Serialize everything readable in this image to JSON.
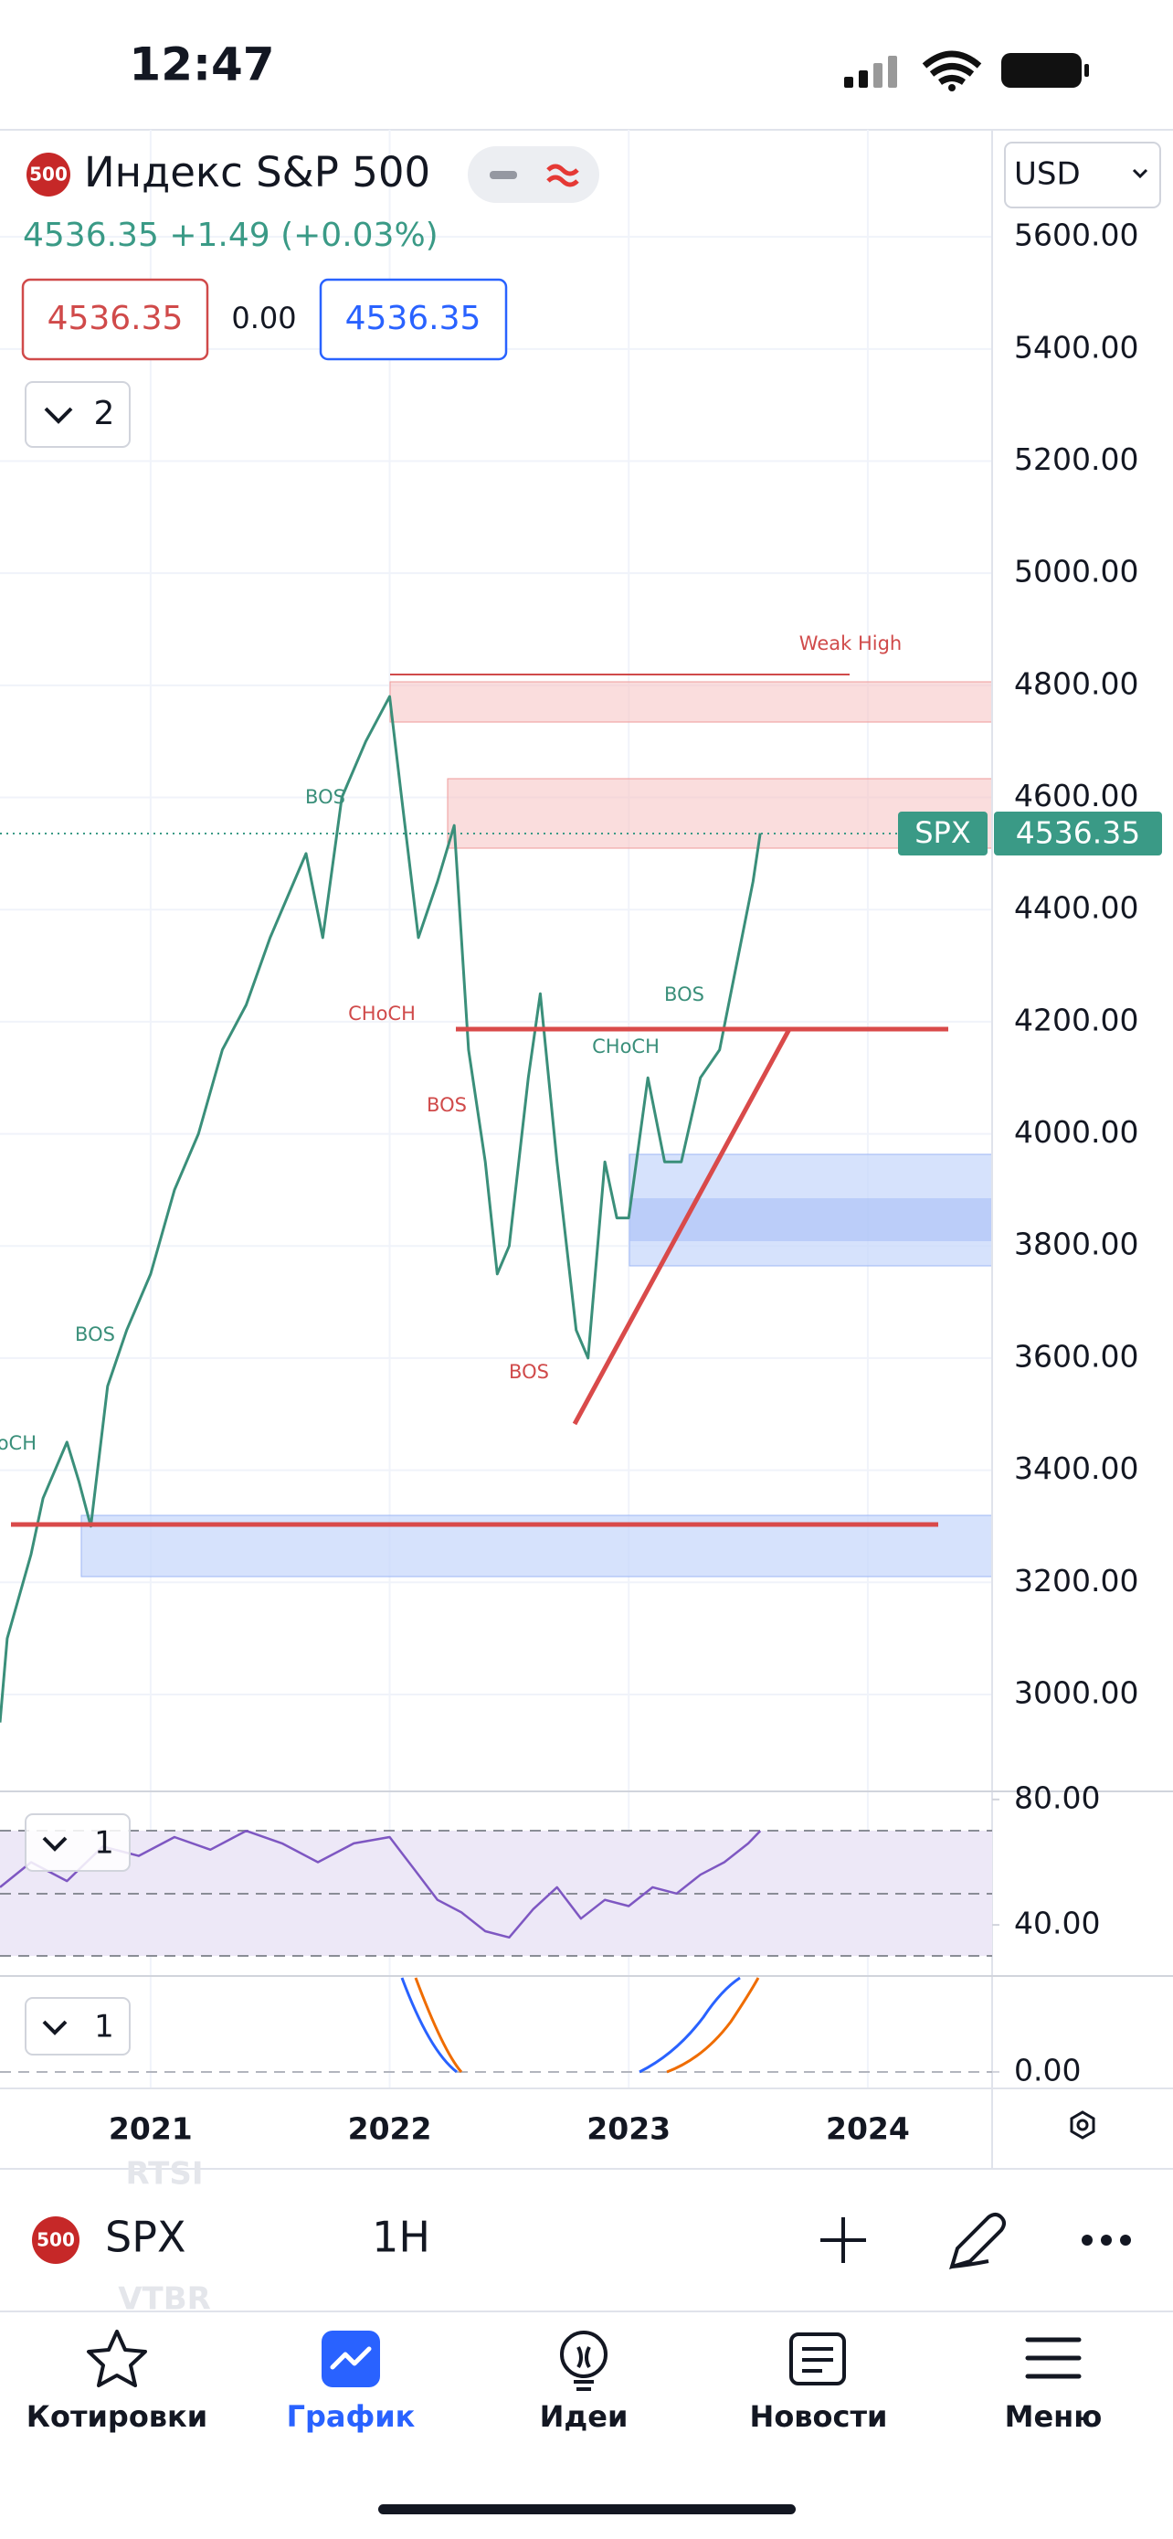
{
  "status": {
    "time": "12:47"
  },
  "header": {
    "logo": "500",
    "title": "Индекс S&P 500",
    "currency": "USD",
    "quote": "4536.35 +1.49 (+0.03%)",
    "bid": "4536.35",
    "spread": "0.00",
    "ask": "4536.35",
    "indicators_toggle": "2"
  },
  "price_badge": {
    "symbol": "SPX",
    "price": "4536.35"
  },
  "annotations": [
    "Weak High",
    "BOS",
    "CHoCH",
    "BOS",
    "BOS",
    "BOS",
    "CHoCH",
    "BOS",
    "CHoCH"
  ],
  "chart_data": [
    {
      "type": "line",
      "color": "#3a8f7a",
      "x": [
        2020.37,
        2020.4,
        2020.5,
        2020.55,
        2020.65,
        2020.7,
        2020.75,
        2020.82,
        2020.9,
        2021.0,
        2021.1,
        2021.2,
        2021.3,
        2021.4,
        2021.5,
        2021.6,
        2021.65,
        2021.72,
        2021.8,
        2021.9,
        2022.0,
        2022.05,
        2022.12,
        2022.2,
        2022.27,
        2022.33,
        2022.4,
        2022.45,
        2022.5,
        2022.58,
        2022.63,
        2022.7,
        2022.78,
        2022.83,
        2022.9,
        2022.95,
        2023.0,
        2023.08,
        2023.15,
        2023.22,
        2023.3,
        2023.38,
        2023.45,
        2023.52,
        2023.55
      ],
      "values": [
        2950,
        3100,
        3250,
        3350,
        3450,
        3380,
        3300,
        3550,
        3650,
        3750,
        3900,
        4000,
        4150,
        4230,
        4350,
        4450,
        4500,
        4350,
        4600,
        4700,
        4780,
        4600,
        4350,
        4450,
        4550,
        4150,
        3950,
        3750,
        3800,
        4100,
        4250,
        3950,
        3650,
        3600,
        3950,
        3850,
        3850,
        4100,
        3950,
        3950,
        4100,
        4150,
        4300,
        4450,
        4536.35
      ],
      "xlim": [
        2020.37,
        2024.52
      ],
      "ylim": [
        2832,
        5791
      ],
      "xticks": [
        2021,
        2022,
        2023,
        2024
      ],
      "yticks": [
        {
          "value": 3000,
          "label": "3000.00"
        },
        {
          "value": 3200,
          "label": "3200.00"
        },
        {
          "value": 3400,
          "label": "3400.00"
        },
        {
          "value": 3600,
          "label": "3600.00"
        },
        {
          "value": 3800,
          "label": "3800.00"
        },
        {
          "value": 4000,
          "label": "4000.00"
        },
        {
          "value": 4200,
          "label": "4200.00"
        },
        {
          "value": 4400,
          "label": "4400.00"
        },
        {
          "value": 4600,
          "label": "4600.00"
        },
        {
          "value": 4800,
          "label": "4800.00"
        },
        {
          "value": 5000,
          "label": "5000.00"
        },
        {
          "value": 5200,
          "label": "5200.00"
        },
        {
          "value": 5400,
          "label": "5400.00"
        },
        {
          "value": 5600,
          "label": "5600.00"
        }
      ],
      "grid": true
    },
    {
      "type": "line",
      "color": "#7e57c2",
      "toggle": "1",
      "x": [
        2020.37,
        2020.5,
        2020.65,
        2020.8,
        2020.95,
        2021.1,
        2021.25,
        2021.4,
        2021.55,
        2021.7,
        2021.85,
        2022.0,
        2022.1,
        2022.2,
        2022.3,
        2022.4,
        2022.5,
        2022.6,
        2022.7,
        2022.8,
        2022.9,
        2023.0,
        2023.1,
        2023.2,
        2023.3,
        2023.4,
        2023.5,
        2023.55
      ],
      "values": [
        52,
        60,
        54,
        65,
        62,
        68,
        64,
        70,
        66,
        60,
        66,
        68,
        58,
        48,
        44,
        38,
        36,
        45,
        52,
        42,
        48,
        46,
        52,
        50,
        56,
        60,
        66,
        70
      ],
      "xlim": [
        2020.37,
        2024.52
      ],
      "ylim": [
        24,
        82
      ],
      "yticks": [
        {
          "value": 80,
          "label": "80.00"
        },
        {
          "value": 40,
          "label": "40.00"
        }
      ]
    },
    {
      "type": "macd",
      "toggle": "1",
      "ylim": [
        -10,
        57
      ],
      "yticks": [
        {
          "value": 0,
          "label": "0.00"
        }
      ]
    }
  ],
  "toolbar": {
    "logo": "500",
    "symbol": "SPX",
    "interval": "1H",
    "ghost_1": "RTSI",
    "ghost_2": "VTBR"
  },
  "tabs": [
    "Котировки",
    "График",
    "Идеи",
    "Новости",
    "Меню"
  ]
}
